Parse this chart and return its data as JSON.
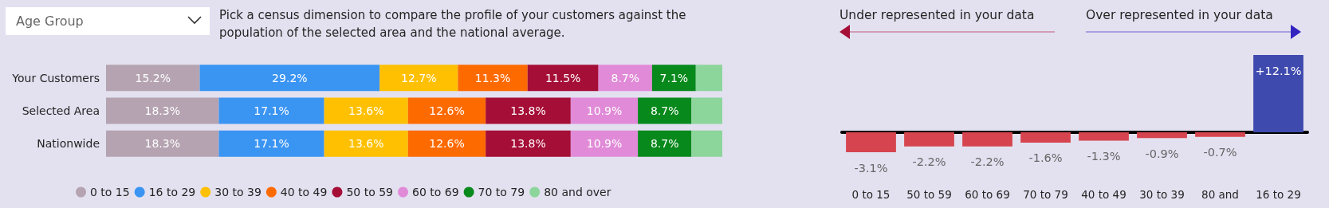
{
  "chart_data": [
    {
      "type": "bar",
      "orientation": "horizontal",
      "stacked": true,
      "legend": "bottom",
      "annotations": [
        "Age Group",
        "Pick a census dimension to compare the profile of your customers against the population of the selected area and the national average."
      ],
      "categories": [
        "Your Customers",
        "Selected Area",
        "Nationwide"
      ],
      "series": [
        {
          "name": "0 to 15",
          "color": "#b5a3b1",
          "values": [
            15.2,
            18.3,
            18.3
          ],
          "value_labels": [
            "15.2%",
            "18.3%",
            "18.3%"
          ]
        },
        {
          "name": "16 to 29",
          "color": "#3a94f2",
          "values": [
            29.2,
            17.1,
            17.1
          ],
          "value_labels": [
            "29.2%",
            "17.1%",
            "17.1%"
          ]
        },
        {
          "name": "30 to 39",
          "color": "#fec000",
          "values": [
            12.7,
            13.6,
            13.6
          ],
          "value_labels": [
            "12.7%",
            "13.6%",
            "13.6%"
          ]
        },
        {
          "name": "40 to 49",
          "color": "#fd6a00",
          "values": [
            11.3,
            12.6,
            12.6
          ],
          "value_labels": [
            "11.3%",
            "12.6%",
            "12.6%"
          ]
        },
        {
          "name": "50 to 59",
          "color": "#a50e36",
          "values": [
            11.5,
            13.8,
            13.8
          ],
          "value_labels": [
            "11.5%",
            "13.8%",
            "13.8%"
          ]
        },
        {
          "name": "60 to 69",
          "color": "#e18bd8",
          "values": [
            8.7,
            10.9,
            10.9
          ],
          "value_labels": [
            "8.7%",
            "10.9%",
            "10.9%"
          ]
        },
        {
          "name": "70 to 79",
          "color": "#08891c",
          "values": [
            7.1,
            8.7,
            8.7
          ],
          "value_labels": [
            "7.1%",
            "8.7%",
            "8.7%"
          ]
        },
        {
          "name": "80 and over",
          "color": "#8cd59b",
          "values": [
            4.3,
            5.0,
            5.0
          ],
          "value_labels": [
            null,
            null,
            null
          ]
        }
      ]
    },
    {
      "type": "bar",
      "annotations": [
        "Under represented in your data",
        "Over represented in your data"
      ],
      "categories": [
        "0 to 15",
        "50 to 59",
        "60 to 69",
        "70 to 79",
        "40 to 49",
        "30 to 39",
        "80 and",
        "16 to 29"
      ],
      "values": [
        -3.1,
        -2.2,
        -2.2,
        -1.6,
        -1.3,
        -0.9,
        -0.7,
        12.1
      ],
      "colors": [
        "#d6454f",
        "#d6454f",
        "#d6454f",
        "#d6454f",
        "#d6454f",
        "#d6454f",
        "#d6454f",
        "#3f4aaf"
      ],
      "value_labels": [
        "-3.1%",
        "-2.2%",
        "-2.2%",
        "-1.6%",
        "-1.3%",
        "-0.9%",
        "-0.7%",
        "+12.1%"
      ]
    }
  ]
}
